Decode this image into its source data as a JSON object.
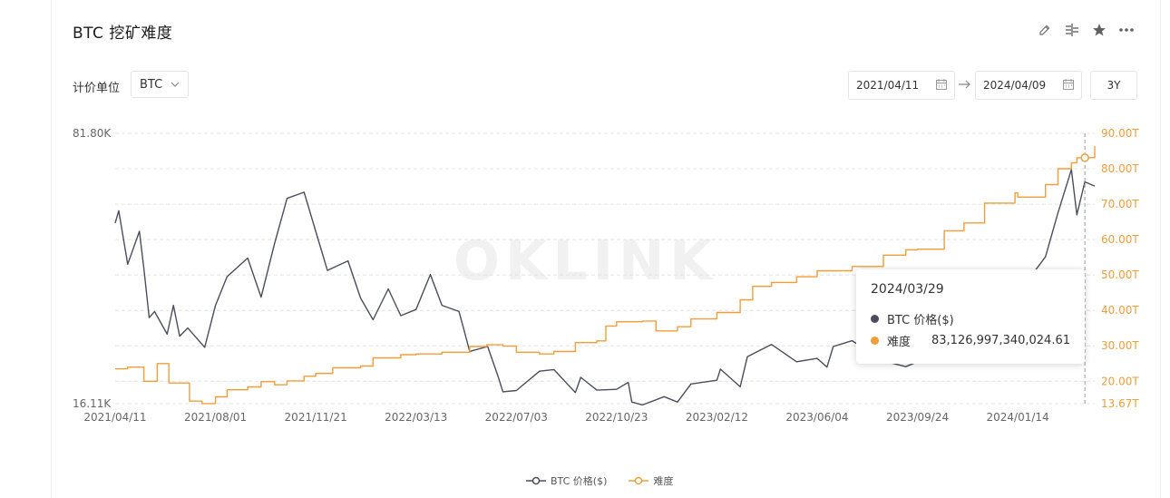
{
  "header": {
    "title": "BTC 挖矿难度",
    "icons": [
      "edit-icon",
      "compare-icon",
      "star-icon",
      "more-icon"
    ]
  },
  "controls": {
    "unit_label": "计价单位",
    "unit_value": "BTC",
    "start_date": "2021/04/11",
    "end_date": "2024/04/09",
    "range_button": "3Y"
  },
  "watermark": "OKLINK",
  "tooltip": {
    "date": "2024/03/29",
    "rows": [
      {
        "label": "BTC 价格($)",
        "value": "",
        "color": "#4b4d5c"
      },
      {
        "label": "难度",
        "value": "83,126,997,340,024.61",
        "color": "#f29d38"
      }
    ]
  },
  "legend": [
    {
      "label": "BTC 价格($)",
      "color": "#4b4d5c"
    },
    {
      "label": "难度",
      "color": "#f29d38"
    }
  ],
  "chart_data": {
    "type": "line",
    "x_tick_labels": [
      "2021/04/11",
      "2021/08/01",
      "2021/11/21",
      "2022/03/13",
      "2022/07/03",
      "2022/10/23",
      "2023/02/12",
      "2023/06/04",
      "2023/09/24",
      "2024/01/14"
    ],
    "left_axis": {
      "ticks": [
        "81.80K",
        "16.11K"
      ],
      "range": [
        16110,
        81800
      ]
    },
    "right_axis": {
      "ticks": [
        "90.00T",
        "80.00T",
        "70.00T",
        "60.00T",
        "50.00T",
        "40.00T",
        "30.00T",
        "20.00T",
        "13.67T"
      ],
      "range": [
        13.67,
        90.0
      ]
    },
    "grid": true,
    "legend_position": "bottom",
    "series": [
      {
        "name": "BTC 价格($)",
        "axis": "left",
        "color": "#4b4d5c",
        "points": [
          [
            "2021/04/11",
            60000
          ],
          [
            "2021/04/15",
            63000
          ],
          [
            "2021/04/25",
            50000
          ],
          [
            "2021/05/08",
            58000
          ],
          [
            "2021/05/13",
            49000
          ],
          [
            "2021/05/19",
            37000
          ],
          [
            "2021/05/25",
            38500
          ],
          [
            "2021/06/08",
            33000
          ],
          [
            "2021/06/15",
            40000
          ],
          [
            "2021/06/22",
            32500
          ],
          [
            "2021/07/01",
            34500
          ],
          [
            "2021/07/20",
            29800
          ],
          [
            "2021/08/01",
            40000
          ],
          [
            "2021/08/14",
            47000
          ],
          [
            "2021/09/06",
            51500
          ],
          [
            "2021/09/21",
            42000
          ],
          [
            "2021/10/06",
            55000
          ],
          [
            "2021/10/20",
            66000
          ],
          [
            "2021/11/08",
            67500
          ],
          [
            "2021/11/21",
            58000
          ],
          [
            "2021/12/04",
            48500
          ],
          [
            "2021/12/27",
            50800
          ],
          [
            "2022/01/10",
            41800
          ],
          [
            "2022/01/24",
            36500
          ],
          [
            "2022/02/10",
            44000
          ],
          [
            "2022/02/24",
            37500
          ],
          [
            "2022/03/13",
            39000
          ],
          [
            "2022/03/29",
            47500
          ],
          [
            "2022/04/11",
            40000
          ],
          [
            "2022/04/30",
            38500
          ],
          [
            "2022/05/12",
            28800
          ],
          [
            "2022/06/01",
            30000
          ],
          [
            "2022/06/13",
            22500
          ],
          [
            "2022/06/18",
            19000
          ],
          [
            "2022/07/03",
            19300
          ],
          [
            "2022/07/29",
            24000
          ],
          [
            "2022/08/14",
            24400
          ],
          [
            "2022/09/07",
            18800
          ],
          [
            "2022/09/13",
            22500
          ],
          [
            "2022/10/01",
            19400
          ],
          [
            "2022/10/23",
            19600
          ],
          [
            "2022/11/05",
            21300
          ],
          [
            "2022/11/09",
            16500
          ],
          [
            "2022/11/21",
            15800
          ],
          [
            "2022/12/15",
            17800
          ],
          [
            "2022/12/30",
            16500
          ],
          [
            "2023/01/14",
            20900
          ],
          [
            "2023/02/12",
            21800
          ],
          [
            "2023/02/16",
            24500
          ],
          [
            "2023/03/10",
            20200
          ],
          [
            "2023/03/18",
            27500
          ],
          [
            "2023/04/14",
            30500
          ],
          [
            "2023/05/12",
            26300
          ],
          [
            "2023/06/04",
            27100
          ],
          [
            "2023/06/15",
            25000
          ],
          [
            "2023/06/22",
            30000
          ],
          [
            "2023/07/13",
            31400
          ],
          [
            "2023/08/17",
            26500
          ],
          [
            "2023/09/11",
            25100
          ],
          [
            "2023/09/24",
            26300
          ],
          [
            "2023/10/24",
            34500
          ],
          [
            "2023/11/15",
            37800
          ],
          [
            "2023/12/08",
            44000
          ],
          [
            "2024/01/11",
            46500
          ],
          [
            "2024/01/22",
            39500
          ],
          [
            "2024/01/14",
            42800
          ],
          [
            "2024/02/14",
            51800
          ],
          [
            "2024/02/28",
            62500
          ],
          [
            "2024/03/14",
            73000
          ],
          [
            "2024/03/20",
            62000
          ],
          [
            "2024/03/29",
            70000
          ],
          [
            "2024/04/09",
            69000
          ]
        ]
      },
      {
        "name": "难度",
        "axis": "right",
        "color": "#f29d38",
        "points": [
          [
            "2021/04/11",
            23.5
          ],
          [
            "2021/04/25",
            24.0
          ],
          [
            "2021/05/13",
            20.0
          ],
          [
            "2021/05/28",
            25.0
          ],
          [
            "2021/06/10",
            19.5
          ],
          [
            "2021/07/03",
            14.4
          ],
          [
            "2021/07/17",
            13.7
          ],
          [
            "2021/08/01",
            15.6
          ],
          [
            "2021/08/14",
            17.6
          ],
          [
            "2021/09/06",
            18.4
          ],
          [
            "2021/09/21",
            19.9
          ],
          [
            "2021/10/06",
            19.0
          ],
          [
            "2021/10/20",
            20.1
          ],
          [
            "2021/11/08",
            21.4
          ],
          [
            "2021/11/21",
            22.2
          ],
          [
            "2021/12/10",
            23.8
          ],
          [
            "2022/01/10",
            24.3
          ],
          [
            "2022/01/24",
            26.6
          ],
          [
            "2022/02/24",
            27.5
          ],
          [
            "2022/03/13",
            27.7
          ],
          [
            "2022/04/11",
            28.2
          ],
          [
            "2022/05/12",
            29.8
          ],
          [
            "2022/05/31",
            30.3
          ],
          [
            "2022/06/18",
            29.9
          ],
          [
            "2022/07/03",
            28.2
          ],
          [
            "2022/07/29",
            27.7
          ],
          [
            "2022/08/14",
            28.4
          ],
          [
            "2022/09/07",
            30.9
          ],
          [
            "2022/10/01",
            31.4
          ],
          [
            "2022/10/11",
            35.6
          ],
          [
            "2022/10/23",
            36.8
          ],
          [
            "2022/11/21",
            37.0
          ],
          [
            "2022/12/06",
            34.2
          ],
          [
            "2022/12/30",
            35.4
          ],
          [
            "2023/01/14",
            37.6
          ],
          [
            "2023/02/12",
            39.4
          ],
          [
            "2023/03/10",
            43.0
          ],
          [
            "2023/03/24",
            46.8
          ],
          [
            "2023/04/14",
            47.9
          ],
          [
            "2023/05/12",
            49.5
          ],
          [
            "2023/06/04",
            51.2
          ],
          [
            "2023/07/13",
            52.4
          ],
          [
            "2023/08/17",
            55.6
          ],
          [
            "2023/09/11",
            57.1
          ],
          [
            "2023/09/24",
            57.3
          ],
          [
            "2023/10/24",
            62.5
          ],
          [
            "2023/11/15",
            64.7
          ],
          [
            "2023/12/08",
            70.3
          ],
          [
            "2024/01/11",
            73.2
          ],
          [
            "2024/01/14",
            72.0
          ],
          [
            "2024/02/14",
            75.5
          ],
          [
            "2024/02/28",
            80.0
          ],
          [
            "2024/03/14",
            81.7
          ],
          [
            "2024/03/20",
            83.1
          ],
          [
            "2024/03/29",
            83.13
          ],
          [
            "2024/04/09",
            86.4
          ]
        ]
      }
    ],
    "highlight_date": "2024/03/29"
  }
}
